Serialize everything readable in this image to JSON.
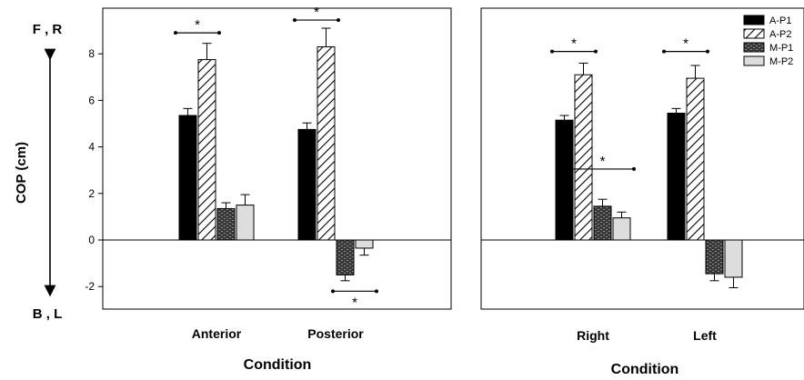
{
  "figure": {
    "y_axis_label": "COP (cm)",
    "top_marker": "F , R",
    "bottom_marker": "B , L"
  },
  "colors": {
    "A-P1": "#000000",
    "A-P2": "hatch-diagonal",
    "M-P1": "#444444",
    "M-P2": "#dddddd"
  },
  "chart_data": [
    {
      "type": "bar",
      "xlabel": "Condition",
      "ylabel": "COP (cm)",
      "ylim": [
        -3,
        9.5
      ],
      "yticks": [
        "-2",
        "0",
        "2",
        "4",
        "6",
        "8"
      ],
      "grid": false,
      "categories": [
        "Anterior",
        "Posterior"
      ],
      "series": [
        {
          "name": "A-P1",
          "values": [
            5.35,
            4.75
          ],
          "errors": [
            0.3,
            0.28
          ]
        },
        {
          "name": "A-P2",
          "values": [
            7.75,
            8.3
          ],
          "errors": [
            0.7,
            0.8
          ]
        },
        {
          "name": "M-P1",
          "values": [
            1.35,
            -1.5
          ],
          "errors": [
            0.25,
            0.25
          ]
        },
        {
          "name": "M-P2",
          "values": [
            1.5,
            -0.35
          ],
          "errors": [
            0.45,
            0.3
          ]
        }
      ],
      "annotations": [
        {
          "text": "*",
          "category": "Anterior",
          "between": [
            "A-P1",
            "A-P2"
          ],
          "at": 8.9
        },
        {
          "text": "*",
          "category": "Posterior",
          "between": [
            "A-P1",
            "A-P2"
          ],
          "at": 9.45
        },
        {
          "text": "*",
          "category": "Posterior",
          "between": [
            "M-P1",
            "M-P2"
          ],
          "at": -2.2
        }
      ]
    },
    {
      "type": "bar",
      "xlabel": "Condition",
      "ylabel": "",
      "ylim": [
        -3,
        9.5
      ],
      "grid": false,
      "legend_position": "top-right",
      "categories": [
        "Right",
        "Left"
      ],
      "series": [
        {
          "name": "A-P1",
          "values": [
            5.15,
            5.45
          ],
          "errors": [
            0.2,
            0.2
          ]
        },
        {
          "name": "A-P2",
          "values": [
            7.1,
            6.95
          ],
          "errors": [
            0.5,
            0.55
          ]
        },
        {
          "name": "M-P1",
          "values": [
            1.45,
            -1.45
          ],
          "errors": [
            0.3,
            0.3
          ]
        },
        {
          "name": "M-P2",
          "values": [
            0.95,
            -1.6
          ],
          "errors": [
            0.25,
            0.45
          ]
        }
      ],
      "annotations": [
        {
          "text": "*",
          "category": "Right",
          "between": [
            "A-P1",
            "A-P2"
          ],
          "at": 8.1
        },
        {
          "text": "*",
          "category": "Right",
          "between": [
            "A-P2",
            "M-P2"
          ],
          "at": 3.05
        },
        {
          "text": "*",
          "category": "Left",
          "between": [
            "A-P1",
            "A-P2"
          ],
          "at": 8.1
        }
      ]
    }
  ]
}
